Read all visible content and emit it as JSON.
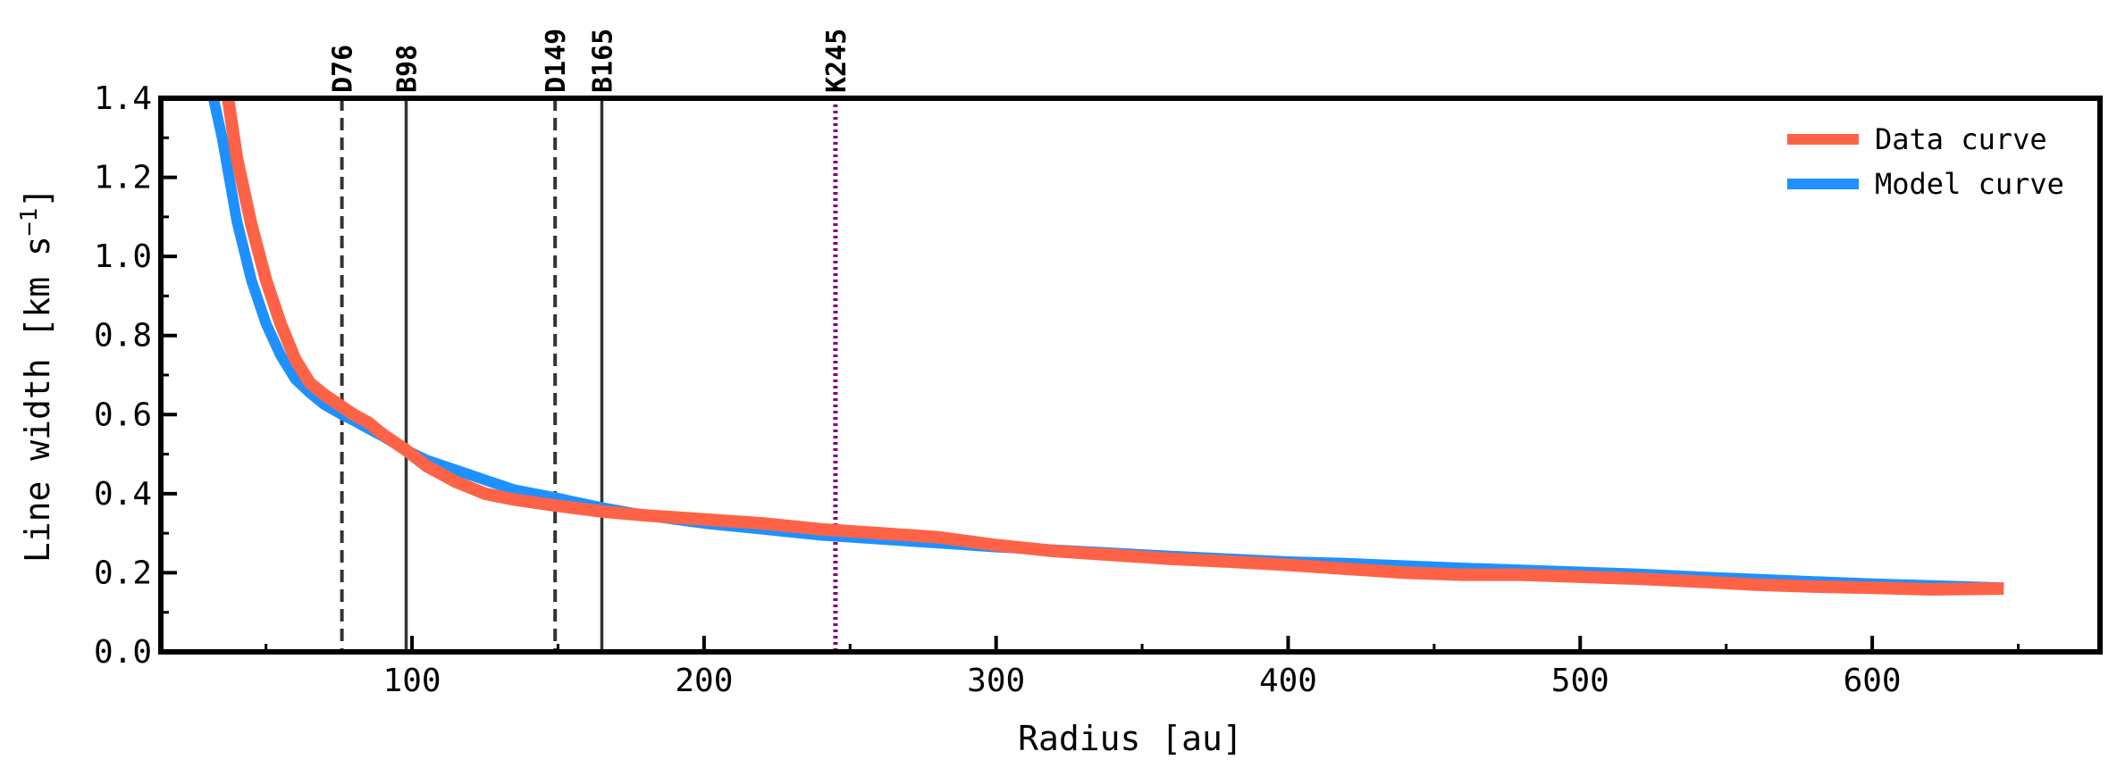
{
  "chart_data": {
    "type": "line",
    "title": "",
    "xlabel": "Radius [au]",
    "ylabel_main": "Line width [km s",
    "ylabel_sup": "−1",
    "ylabel_tail": "]",
    "xlim": [
      14,
      678
    ],
    "ylim": [
      0.0,
      1.4
    ],
    "xticks": [
      100,
      200,
      300,
      400,
      500,
      600
    ],
    "xtick_labels": [
      "100",
      "200",
      "300",
      "400",
      "500",
      "600"
    ],
    "yticks": [
      0.0,
      0.2,
      0.4,
      0.6,
      0.8,
      1.0,
      1.2,
      1.4
    ],
    "ytick_labels": [
      "0.0",
      "0.2",
      "0.4",
      "0.6",
      "0.8",
      "1.0",
      "1.2",
      "1.4"
    ],
    "legend_position": "top-right",
    "grid": false,
    "markers": [
      {
        "label": "D76",
        "x": 76,
        "style": "dashed",
        "color": "#333333"
      },
      {
        "label": "B98",
        "x": 98,
        "style": "solid",
        "color": "#333333"
      },
      {
        "label": "D149",
        "x": 149,
        "style": "dashed",
        "color": "#333333"
      },
      {
        "label": "B165",
        "x": 165,
        "style": "solid",
        "color": "#333333"
      },
      {
        "label": "K245",
        "x": 245,
        "style": "dotted",
        "color": "#800080"
      }
    ],
    "series": [
      {
        "name": "Data curve",
        "color": "#FF6347",
        "x": [
          37,
          40,
          45,
          50,
          55,
          60,
          65,
          70,
          76,
          80,
          85,
          90,
          98,
          105,
          115,
          125,
          135,
          149,
          165,
          180,
          200,
          220,
          240,
          260,
          280,
          300,
          320,
          340,
          360,
          380,
          400,
          420,
          440,
          460,
          480,
          500,
          520,
          540,
          560,
          580,
          600,
          620,
          645
        ],
        "y": [
          1.4,
          1.25,
          1.08,
          0.94,
          0.83,
          0.74,
          0.68,
          0.65,
          0.62,
          0.6,
          0.58,
          0.55,
          0.51,
          0.47,
          0.43,
          0.4,
          0.385,
          0.37,
          0.355,
          0.345,
          0.335,
          0.325,
          0.31,
          0.3,
          0.29,
          0.27,
          0.255,
          0.245,
          0.235,
          0.228,
          0.22,
          0.21,
          0.2,
          0.195,
          0.195,
          0.19,
          0.185,
          0.178,
          0.17,
          0.165,
          0.162,
          0.158,
          0.16
        ]
      },
      {
        "name": "Model curve",
        "color": "#1E90FF",
        "x": [
          32,
          35,
          40,
          45,
          50,
          55,
          60,
          65,
          70,
          76,
          80,
          85,
          90,
          98,
          105,
          115,
          125,
          135,
          149,
          165,
          180,
          200,
          220,
          240,
          260,
          280,
          300,
          320,
          340,
          360,
          380,
          400,
          420,
          440,
          460,
          480,
          500,
          520,
          540,
          560,
          580,
          600,
          620,
          645
        ],
        "y": [
          1.4,
          1.3,
          1.09,
          0.94,
          0.83,
          0.75,
          0.69,
          0.655,
          0.625,
          0.6,
          0.585,
          0.565,
          0.545,
          0.51,
          0.485,
          0.46,
          0.435,
          0.41,
          0.39,
          0.365,
          0.345,
          0.325,
          0.31,
          0.295,
          0.285,
          0.275,
          0.265,
          0.258,
          0.25,
          0.242,
          0.235,
          0.228,
          0.224,
          0.218,
          0.212,
          0.207,
          0.202,
          0.197,
          0.19,
          0.184,
          0.178,
          0.172,
          0.168,
          0.162
        ]
      }
    ]
  }
}
